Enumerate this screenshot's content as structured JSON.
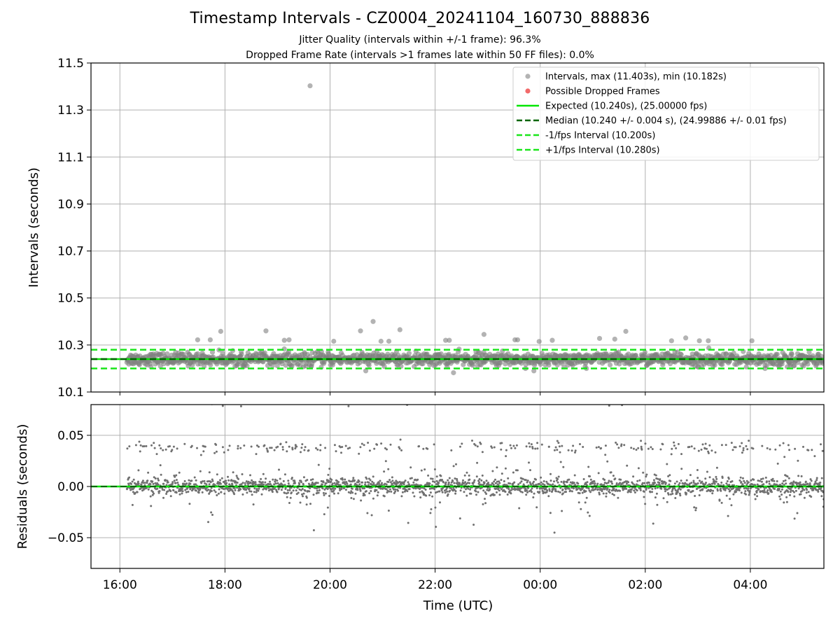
{
  "title": "Timestamp Intervals - CZ0004_20241104_160730_888836",
  "subtitle_lines": [
    "Jitter Quality (intervals within +/-1 frame): 96.3%",
    "Dropped Frame Rate (intervals >1 frames late within 50 FF files): 0.0%"
  ],
  "colors": {
    "points": "#808080",
    "dropped": "#f05050",
    "expected": "#00e600",
    "median": "#006400",
    "bounds": "#1ae61a",
    "grid": "#b0b0b0"
  },
  "chart_data": [
    {
      "type": "scatter",
      "name_panel": "intervals",
      "ylabel": "Intervals (seconds)",
      "xlabel": "",
      "x_unit": "hours (UTC, 16:00 on day 1 = 16)",
      "xlim": [
        15.45,
        29.4
      ],
      "ylim": [
        10.1,
        11.5
      ],
      "yticks": [
        "10.1",
        "10.3",
        "10.5",
        "10.7",
        "10.9",
        "11.1",
        "11.3",
        "11.5"
      ],
      "grid": true,
      "legend_position": "top-right",
      "legend": [
        "Intervals, max (11.403s), min (10.182s)",
        "Possible Dropped Frames",
        "Expected (10.240s), (25.00000 fps)",
        "Median (10.240 +/- 0.004 s), (24.99886 +/- 0.01 fps)",
        "-1/fps Interval (10.200s)",
        "+1/fps Interval (10.280s)"
      ],
      "expected": 10.24,
      "median": 10.24,
      "lower_bound": 10.2,
      "upper_bound": 10.28,
      "max_interval": 11.403,
      "min_interval": 10.182,
      "data_range_hours": [
        16.13,
        29.4
      ],
      "outliers": [
        {
          "x": 19.62,
          "y": 11.403
        },
        {
          "x": 20.82,
          "y": 10.4
        },
        {
          "x": 20.58,
          "y": 10.36
        },
        {
          "x": 17.92,
          "y": 10.358
        },
        {
          "x": 18.78,
          "y": 10.36
        },
        {
          "x": 21.33,
          "y": 10.365
        },
        {
          "x": 25.63,
          "y": 10.358
        },
        {
          "x": 22.93,
          "y": 10.345
        },
        {
          "x": 26.77,
          "y": 10.33
        },
        {
          "x": 25.13,
          "y": 10.328
        },
        {
          "x": 25.42,
          "y": 10.325
        },
        {
          "x": 17.48,
          "y": 10.322
        },
        {
          "x": 17.72,
          "y": 10.322
        },
        {
          "x": 19.13,
          "y": 10.32
        },
        {
          "x": 19.22,
          "y": 10.322
        },
        {
          "x": 20.07,
          "y": 10.316
        },
        {
          "x": 20.97,
          "y": 10.316
        },
        {
          "x": 21.12,
          "y": 10.316
        },
        {
          "x": 22.2,
          "y": 10.32
        },
        {
          "x": 22.27,
          "y": 10.32
        },
        {
          "x": 23.52,
          "y": 10.322
        },
        {
          "x": 23.57,
          "y": 10.322
        },
        {
          "x": 23.98,
          "y": 10.315
        },
        {
          "x": 24.23,
          "y": 10.32
        },
        {
          "x": 26.5,
          "y": 10.318
        },
        {
          "x": 27.03,
          "y": 10.318
        },
        {
          "x": 27.2,
          "y": 10.318
        },
        {
          "x": 28.03,
          "y": 10.318
        },
        {
          "x": 20.68,
          "y": 10.19
        },
        {
          "x": 22.35,
          "y": 10.182
        },
        {
          "x": 23.72,
          "y": 10.2
        },
        {
          "x": 23.88,
          "y": 10.19
        },
        {
          "x": 24.88,
          "y": 10.2
        },
        {
          "x": 28.28,
          "y": 10.2
        }
      ]
    },
    {
      "type": "scatter",
      "name_panel": "residuals",
      "ylabel": "Residuals (seconds)",
      "xlabel": "Time (UTC)",
      "xlim": [
        15.45,
        29.4
      ],
      "ylim": [
        -0.08,
        0.08
      ],
      "yticks": [
        "−0.05",
        "0.00",
        "0.05"
      ],
      "xticks": [
        "16:00",
        "18:00",
        "20:00",
        "22:00",
        "00:00",
        "02:00",
        "04:00"
      ],
      "grid": true,
      "zero_line": 0.0
    }
  ]
}
